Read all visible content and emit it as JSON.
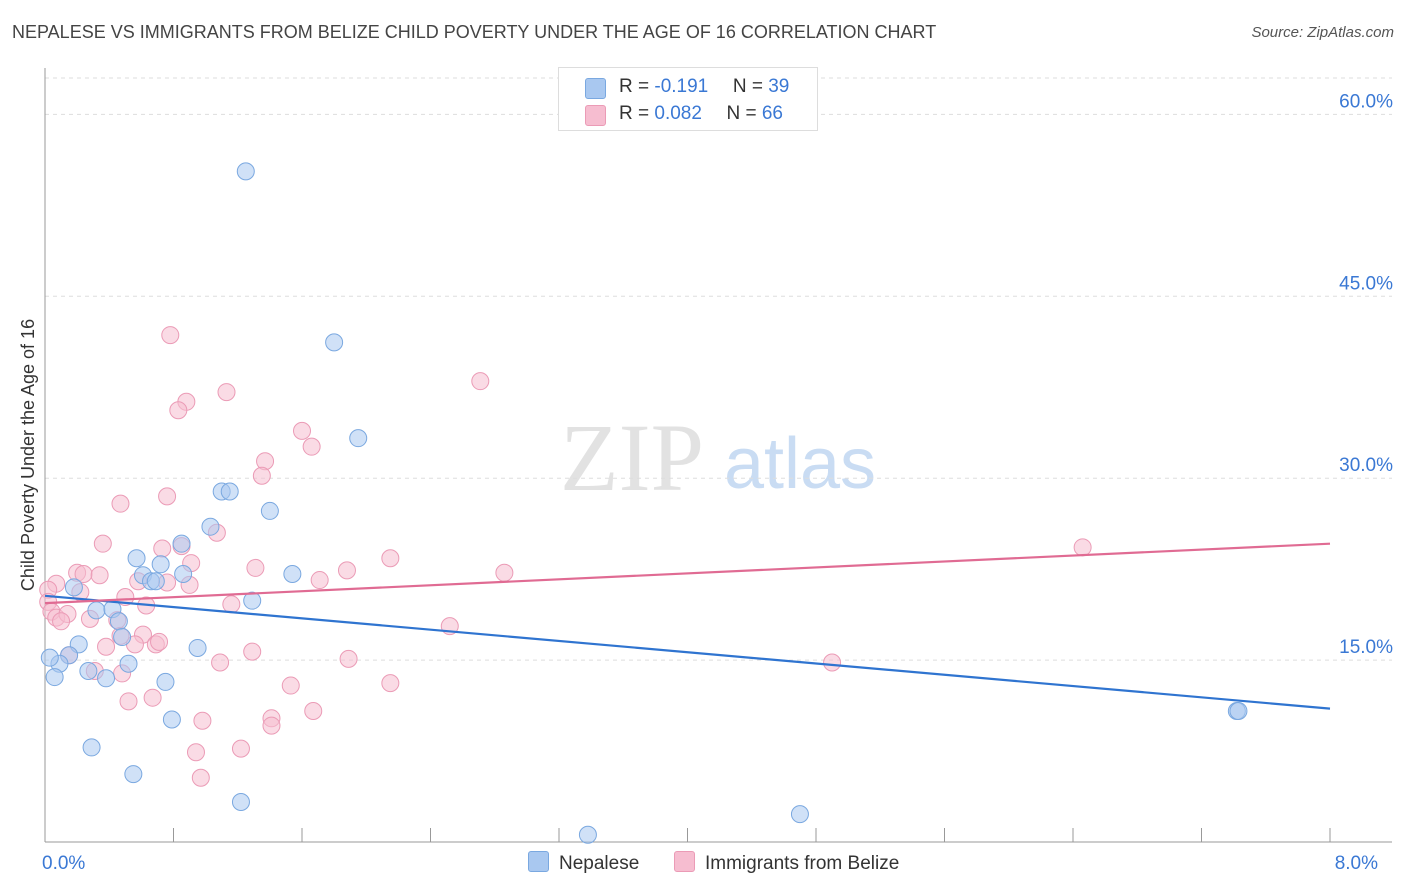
{
  "title": "NEPALESE VS IMMIGRANTS FROM BELIZE CHILD POVERTY UNDER THE AGE OF 16 CORRELATION CHART",
  "source": "Source: ZipAtlas.com",
  "watermark": {
    "zip": "ZIP",
    "atlas": "atlas"
  },
  "legend": {
    "nepalese": {
      "r_label": "R = ",
      "r_value": "-0.191",
      "n_label": "N = ",
      "n_value": "39"
    },
    "belize": {
      "r_label": "R = ",
      "r_value": "0.082",
      "n_label": "N = ",
      "n_value": "66"
    }
  },
  "bottom_legend": {
    "nepalese": "Nepalese",
    "belize": "Immigrants from Belize"
  },
  "colors": {
    "nepalese_fill": "#a9c8f0",
    "nepalese_stroke": "#7aa8e0",
    "nepalese_line": "#2f74d0",
    "belize_fill": "#f6bdd0",
    "belize_stroke": "#eb9bb6",
    "belize_line": "#e06b93",
    "tick_label": "#3a78d4"
  },
  "chart_data": {
    "type": "scatter",
    "title": "NEPALESE VS IMMIGRANTS FROM BELIZE CHILD POVERTY UNDER THE AGE OF 16 CORRELATION CHART",
    "ylabel": "Child Poverty Under the Age of 16",
    "xlabel": "",
    "xlim": [
      0,
      8
    ],
    "ylim": [
      0,
      63
    ],
    "x_tick_labels": [
      {
        "value": 0,
        "label": "0.0%"
      },
      {
        "value": 8,
        "label": "8.0%"
      }
    ],
    "y_tick_labels": [
      {
        "value": 15,
        "label": "15.0%"
      },
      {
        "value": 30,
        "label": "30.0%"
      },
      {
        "value": 45,
        "label": "45.0%"
      },
      {
        "value": 60,
        "label": "60.0%"
      }
    ],
    "grid": "horizontal dashed",
    "legend_position": "top-center",
    "series": [
      {
        "name": "Nepalese",
        "r": -0.191,
        "n": 39,
        "trend": [
          [
            0,
            20.3
          ],
          [
            8,
            11.0
          ]
        ],
        "points": [
          [
            1.25,
            55.3
          ],
          [
            1.8,
            41.2
          ],
          [
            1.95,
            33.3
          ],
          [
            1.1,
            28.9
          ],
          [
            1.15,
            28.9
          ],
          [
            1.4,
            27.3
          ],
          [
            1.03,
            26.0
          ],
          [
            0.85,
            24.6
          ],
          [
            0.57,
            23.4
          ],
          [
            0.72,
            22.9
          ],
          [
            0.61,
            22.0
          ],
          [
            1.54,
            22.1
          ],
          [
            0.66,
            21.5
          ],
          [
            0.69,
            21.5
          ],
          [
            0.86,
            22.1
          ],
          [
            1.29,
            19.9
          ],
          [
            0.18,
            21.0
          ],
          [
            0.32,
            19.1
          ],
          [
            0.42,
            19.2
          ],
          [
            0.46,
            18.2
          ],
          [
            0.48,
            16.9
          ],
          [
            0.21,
            16.3
          ],
          [
            0.15,
            15.4
          ],
          [
            0.09,
            14.7
          ],
          [
            0.03,
            15.2
          ],
          [
            0.52,
            14.7
          ],
          [
            0.27,
            14.1
          ],
          [
            0.38,
            13.5
          ],
          [
            0.06,
            13.6
          ],
          [
            0.75,
            13.2
          ],
          [
            0.95,
            16.0
          ],
          [
            0.79,
            10.1
          ],
          [
            0.29,
            7.8
          ],
          [
            0.55,
            5.6
          ],
          [
            1.22,
            3.3
          ],
          [
            4.7,
            2.3
          ],
          [
            3.38,
            0.6
          ],
          [
            7.42,
            10.8
          ],
          [
            7.43,
            10.8
          ]
        ]
      },
      {
        "name": "Immigrants from Belize",
        "r": 0.082,
        "n": 66,
        "trend": [
          [
            0,
            19.7
          ],
          [
            8,
            24.6
          ]
        ],
        "points": [
          [
            0.78,
            41.8
          ],
          [
            2.71,
            38.0
          ],
          [
            1.13,
            37.1
          ],
          [
            0.88,
            36.3
          ],
          [
            0.83,
            35.6
          ],
          [
            1.6,
            33.9
          ],
          [
            1.66,
            32.6
          ],
          [
            1.37,
            31.4
          ],
          [
            1.35,
            30.2
          ],
          [
            0.47,
            27.9
          ],
          [
            0.76,
            28.5
          ],
          [
            1.07,
            25.5
          ],
          [
            0.36,
            24.6
          ],
          [
            0.73,
            24.2
          ],
          [
            0.85,
            24.4
          ],
          [
            0.91,
            23.0
          ],
          [
            2.15,
            23.4
          ],
          [
            1.31,
            22.6
          ],
          [
            1.88,
            22.4
          ],
          [
            2.86,
            22.2
          ],
          [
            0.2,
            22.2
          ],
          [
            0.24,
            22.1
          ],
          [
            0.34,
            22.0
          ],
          [
            0.76,
            21.4
          ],
          [
            0.9,
            21.2
          ],
          [
            1.71,
            21.6
          ],
          [
            0.07,
            21.3
          ],
          [
            0.02,
            20.8
          ],
          [
            0.22,
            20.6
          ],
          [
            0.5,
            20.2
          ],
          [
            0.58,
            21.5
          ],
          [
            0.63,
            19.5
          ],
          [
            1.16,
            19.6
          ],
          [
            0.02,
            19.8
          ],
          [
            0.04,
            19.0
          ],
          [
            0.07,
            18.5
          ],
          [
            0.14,
            18.8
          ],
          [
            0.1,
            18.2
          ],
          [
            0.28,
            18.4
          ],
          [
            0.45,
            18.3
          ],
          [
            0.47,
            17.0
          ],
          [
            0.61,
            17.1
          ],
          [
            0.38,
            16.1
          ],
          [
            0.56,
            16.3
          ],
          [
            0.69,
            16.3
          ],
          [
            0.71,
            16.5
          ],
          [
            2.52,
            17.8
          ],
          [
            1.29,
            15.7
          ],
          [
            0.15,
            15.4
          ],
          [
            0.31,
            14.1
          ],
          [
            0.48,
            13.9
          ],
          [
            1.09,
            14.8
          ],
          [
            1.89,
            15.1
          ],
          [
            4.9,
            14.8
          ],
          [
            0.52,
            11.6
          ],
          [
            0.67,
            11.9
          ],
          [
            1.53,
            12.9
          ],
          [
            2.15,
            13.1
          ],
          [
            0.98,
            10.0
          ],
          [
            1.41,
            10.2
          ],
          [
            1.67,
            10.8
          ],
          [
            1.41,
            9.6
          ],
          [
            0.94,
            7.4
          ],
          [
            1.22,
            7.7
          ],
          [
            0.97,
            5.3
          ],
          [
            6.46,
            24.3
          ]
        ]
      }
    ]
  }
}
